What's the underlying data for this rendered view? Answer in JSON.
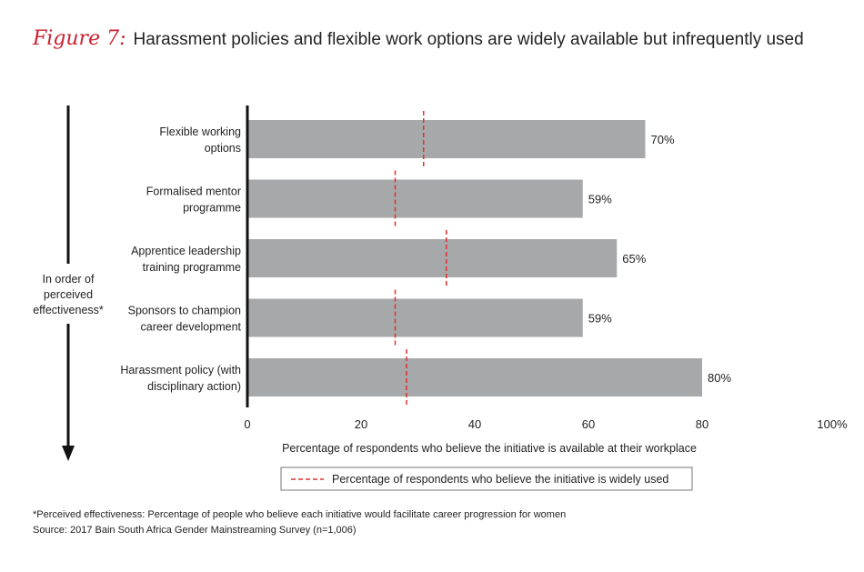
{
  "figure": {
    "label": "Figure 7:",
    "title": "Harassment policies and flexible work options are widely available but infrequently used"
  },
  "chart_data": {
    "type": "bar",
    "orientation": "horizontal",
    "categories": [
      "Flexible working options",
      "Formalised mentor programme",
      "Apprentice leadership training programme",
      "Sponsors to champion career development",
      "Harassment policy (with disciplinary action)"
    ],
    "category_lines": [
      [
        "Flexible working",
        "options"
      ],
      [
        "Formalised mentor",
        "programme"
      ],
      [
        "Apprentice leadership",
        "training programme"
      ],
      [
        "Sponsors to champion",
        "career development"
      ],
      [
        "Harassment policy (with",
        "disciplinary action)"
      ]
    ],
    "values": [
      70,
      59,
      65,
      59,
      80
    ],
    "value_labels": [
      "70%",
      "59%",
      "65%",
      "59%",
      "80%"
    ],
    "widely_used": [
      31,
      26,
      35,
      26,
      28
    ],
    "xlim": [
      0,
      100
    ],
    "xticks": [
      "0",
      "20",
      "40",
      "60",
      "80",
      "100%"
    ],
    "xlabel": "Percentage of respondents who believe the initiative is available at their workplace",
    "legend": {
      "position": "bottom",
      "label": "Percentage of respondents who believe the initiative is widely used"
    },
    "side_note": [
      "In order of",
      "perceived",
      "effectiveness*"
    ],
    "colors": {
      "bar": "#a7a8aa",
      "marker": "#e0312e",
      "axis": "#111111",
      "title_accent": "#cc1f2e"
    }
  },
  "footnotes": {
    "note": "*Perceived effectiveness: Percentage of people who believe each initiative would facilitate career progression for women",
    "source": "Source: 2017 Bain South Africa Gender Mainstreaming Survey (n=1,006)"
  }
}
